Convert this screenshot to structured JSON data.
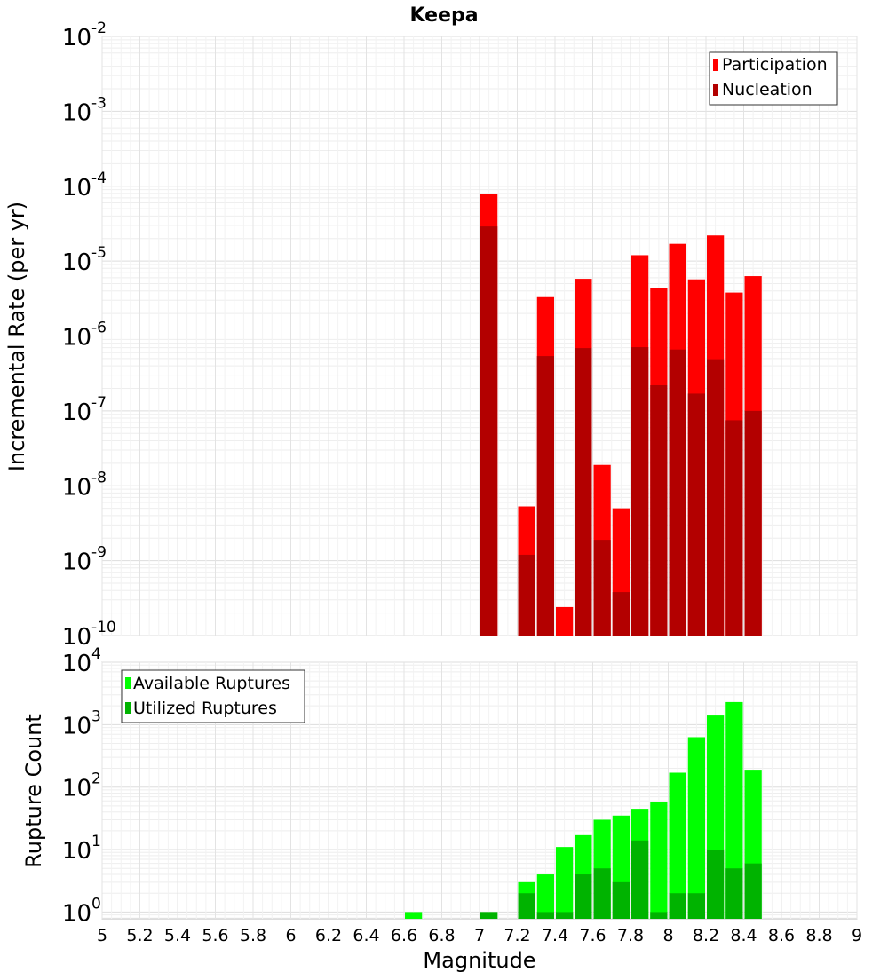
{
  "chart_data": [
    {
      "type": "bar",
      "title": "Keepa",
      "xlabel": "",
      "ylabel": "Incremental Rate (per yr)",
      "yscale": "log",
      "ylim": [
        1e-10,
        0.01
      ],
      "xlim": [
        5,
        9
      ],
      "legend_position": "top-right",
      "grid": true,
      "y_tick_exponents": [
        "-2",
        "-3",
        "-4",
        "-5",
        "-6",
        "-7",
        "-8",
        "-9",
        "-10"
      ],
      "x": [
        7.05,
        7.25,
        7.35,
        7.45,
        7.55,
        7.65,
        7.75,
        7.85,
        7.95,
        8.05,
        8.15,
        8.25,
        8.35,
        8.45
      ],
      "series": [
        {
          "name": "Participation",
          "color": "#ff0000",
          "values": [
            7.8e-05,
            5.3e-09,
            3.3e-06,
            2.4e-10,
            5.8e-06,
            1.9e-08,
            5e-09,
            1.2e-05,
            4.4e-06,
            1.7e-05,
            5.7e-06,
            2.2e-05,
            3.8e-06,
            6.3e-06
          ]
        },
        {
          "name": "Nucleation",
          "color": "#b30000",
          "values": [
            2.9e-05,
            1.2e-09,
            5.4e-07,
            null,
            6.9e-07,
            1.9e-09,
            3.8e-10,
            7.1e-07,
            2.2e-07,
            6.6e-07,
            1.7e-07,
            4.9e-07,
            7.5e-08,
            1e-07
          ]
        }
      ]
    },
    {
      "type": "bar",
      "title": "",
      "xlabel": "Magnitude",
      "ylabel": "Rupture Count",
      "yscale": "log",
      "ylim": [
        0.78,
        10000
      ],
      "xlim": [
        5,
        9
      ],
      "legend_position": "top-left",
      "grid": true,
      "y_tick_exponents": [
        "4",
        "3",
        "2",
        "1",
        "0"
      ],
      "x_ticks": [
        "5",
        "5.2",
        "5.4",
        "5.6",
        "5.8",
        "6",
        "6.2",
        "6.4",
        "6.6",
        "6.8",
        "7",
        "7.2",
        "7.4",
        "7.6",
        "7.8",
        "8",
        "8.2",
        "8.4",
        "8.6",
        "8.8",
        "9"
      ],
      "x": [
        6.65,
        7.05,
        7.25,
        7.35,
        7.45,
        7.55,
        7.65,
        7.75,
        7.85,
        7.95,
        8.05,
        8.15,
        8.25,
        8.35,
        8.45
      ],
      "series": [
        {
          "name": "Available Ruptures",
          "color": "#00ff00",
          "values": [
            1,
            1,
            3,
            4,
            11,
            17,
            30,
            35,
            45,
            57,
            170,
            630,
            1400,
            2300,
            190
          ]
        },
        {
          "name": "Utilized Ruptures",
          "color": "#00b300",
          "values": [
            null,
            1,
            2,
            1,
            1,
            4,
            5,
            3,
            14,
            1,
            2,
            2,
            10,
            5,
            6
          ]
        }
      ]
    }
  ]
}
